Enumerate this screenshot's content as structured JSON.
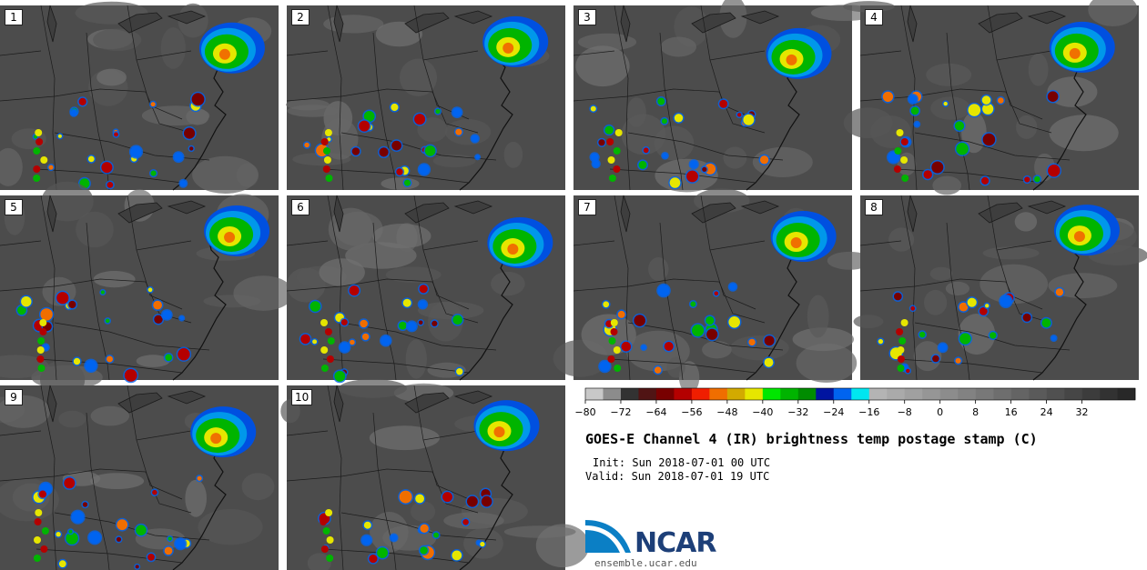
{
  "figure": {
    "title": "GOES-E Channel 4 (IR) brightness temp postage stamp (C)",
    "init": "Init: Sun 2018-07-01 00 UTC",
    "valid": "Valid: Sun 2018-07-01 19 UTC"
  },
  "panels": [
    {
      "label": "1"
    },
    {
      "label": "2"
    },
    {
      "label": "3"
    },
    {
      "label": "4"
    },
    {
      "label": "5"
    },
    {
      "label": "6"
    },
    {
      "label": "7"
    },
    {
      "label": "8"
    },
    {
      "label": "9"
    },
    {
      "label": "10"
    }
  ],
  "colorbar": {
    "ticks": [
      "−80",
      "−72",
      "−64",
      "−56",
      "−48",
      "−40",
      "−32",
      "−24",
      "−16",
      "−8",
      "0",
      "8",
      "16",
      "24",
      "32"
    ],
    "colors": [
      "#c8c8c8",
      "#8c8c8c",
      "#323232",
      "#501414",
      "#780000",
      "#b40000",
      "#f01e00",
      "#f06e00",
      "#d2aa00",
      "#e6e600",
      "#00e600",
      "#00b400",
      "#008c00",
      "#0014a0",
      "#0064f0",
      "#00e6f0",
      "#b4b4b4",
      "#aaaaaa",
      "#a0a0a0",
      "#969696",
      "#8c8c8c",
      "#828282",
      "#787878",
      "#6e6e6e",
      "#646464",
      "#5a5a5a",
      "#505050",
      "#464646",
      "#3c3c3c",
      "#323232",
      "#282828"
    ]
  },
  "logo": {
    "name": "NCAR",
    "site": "ensemble.ucar.edu"
  }
}
